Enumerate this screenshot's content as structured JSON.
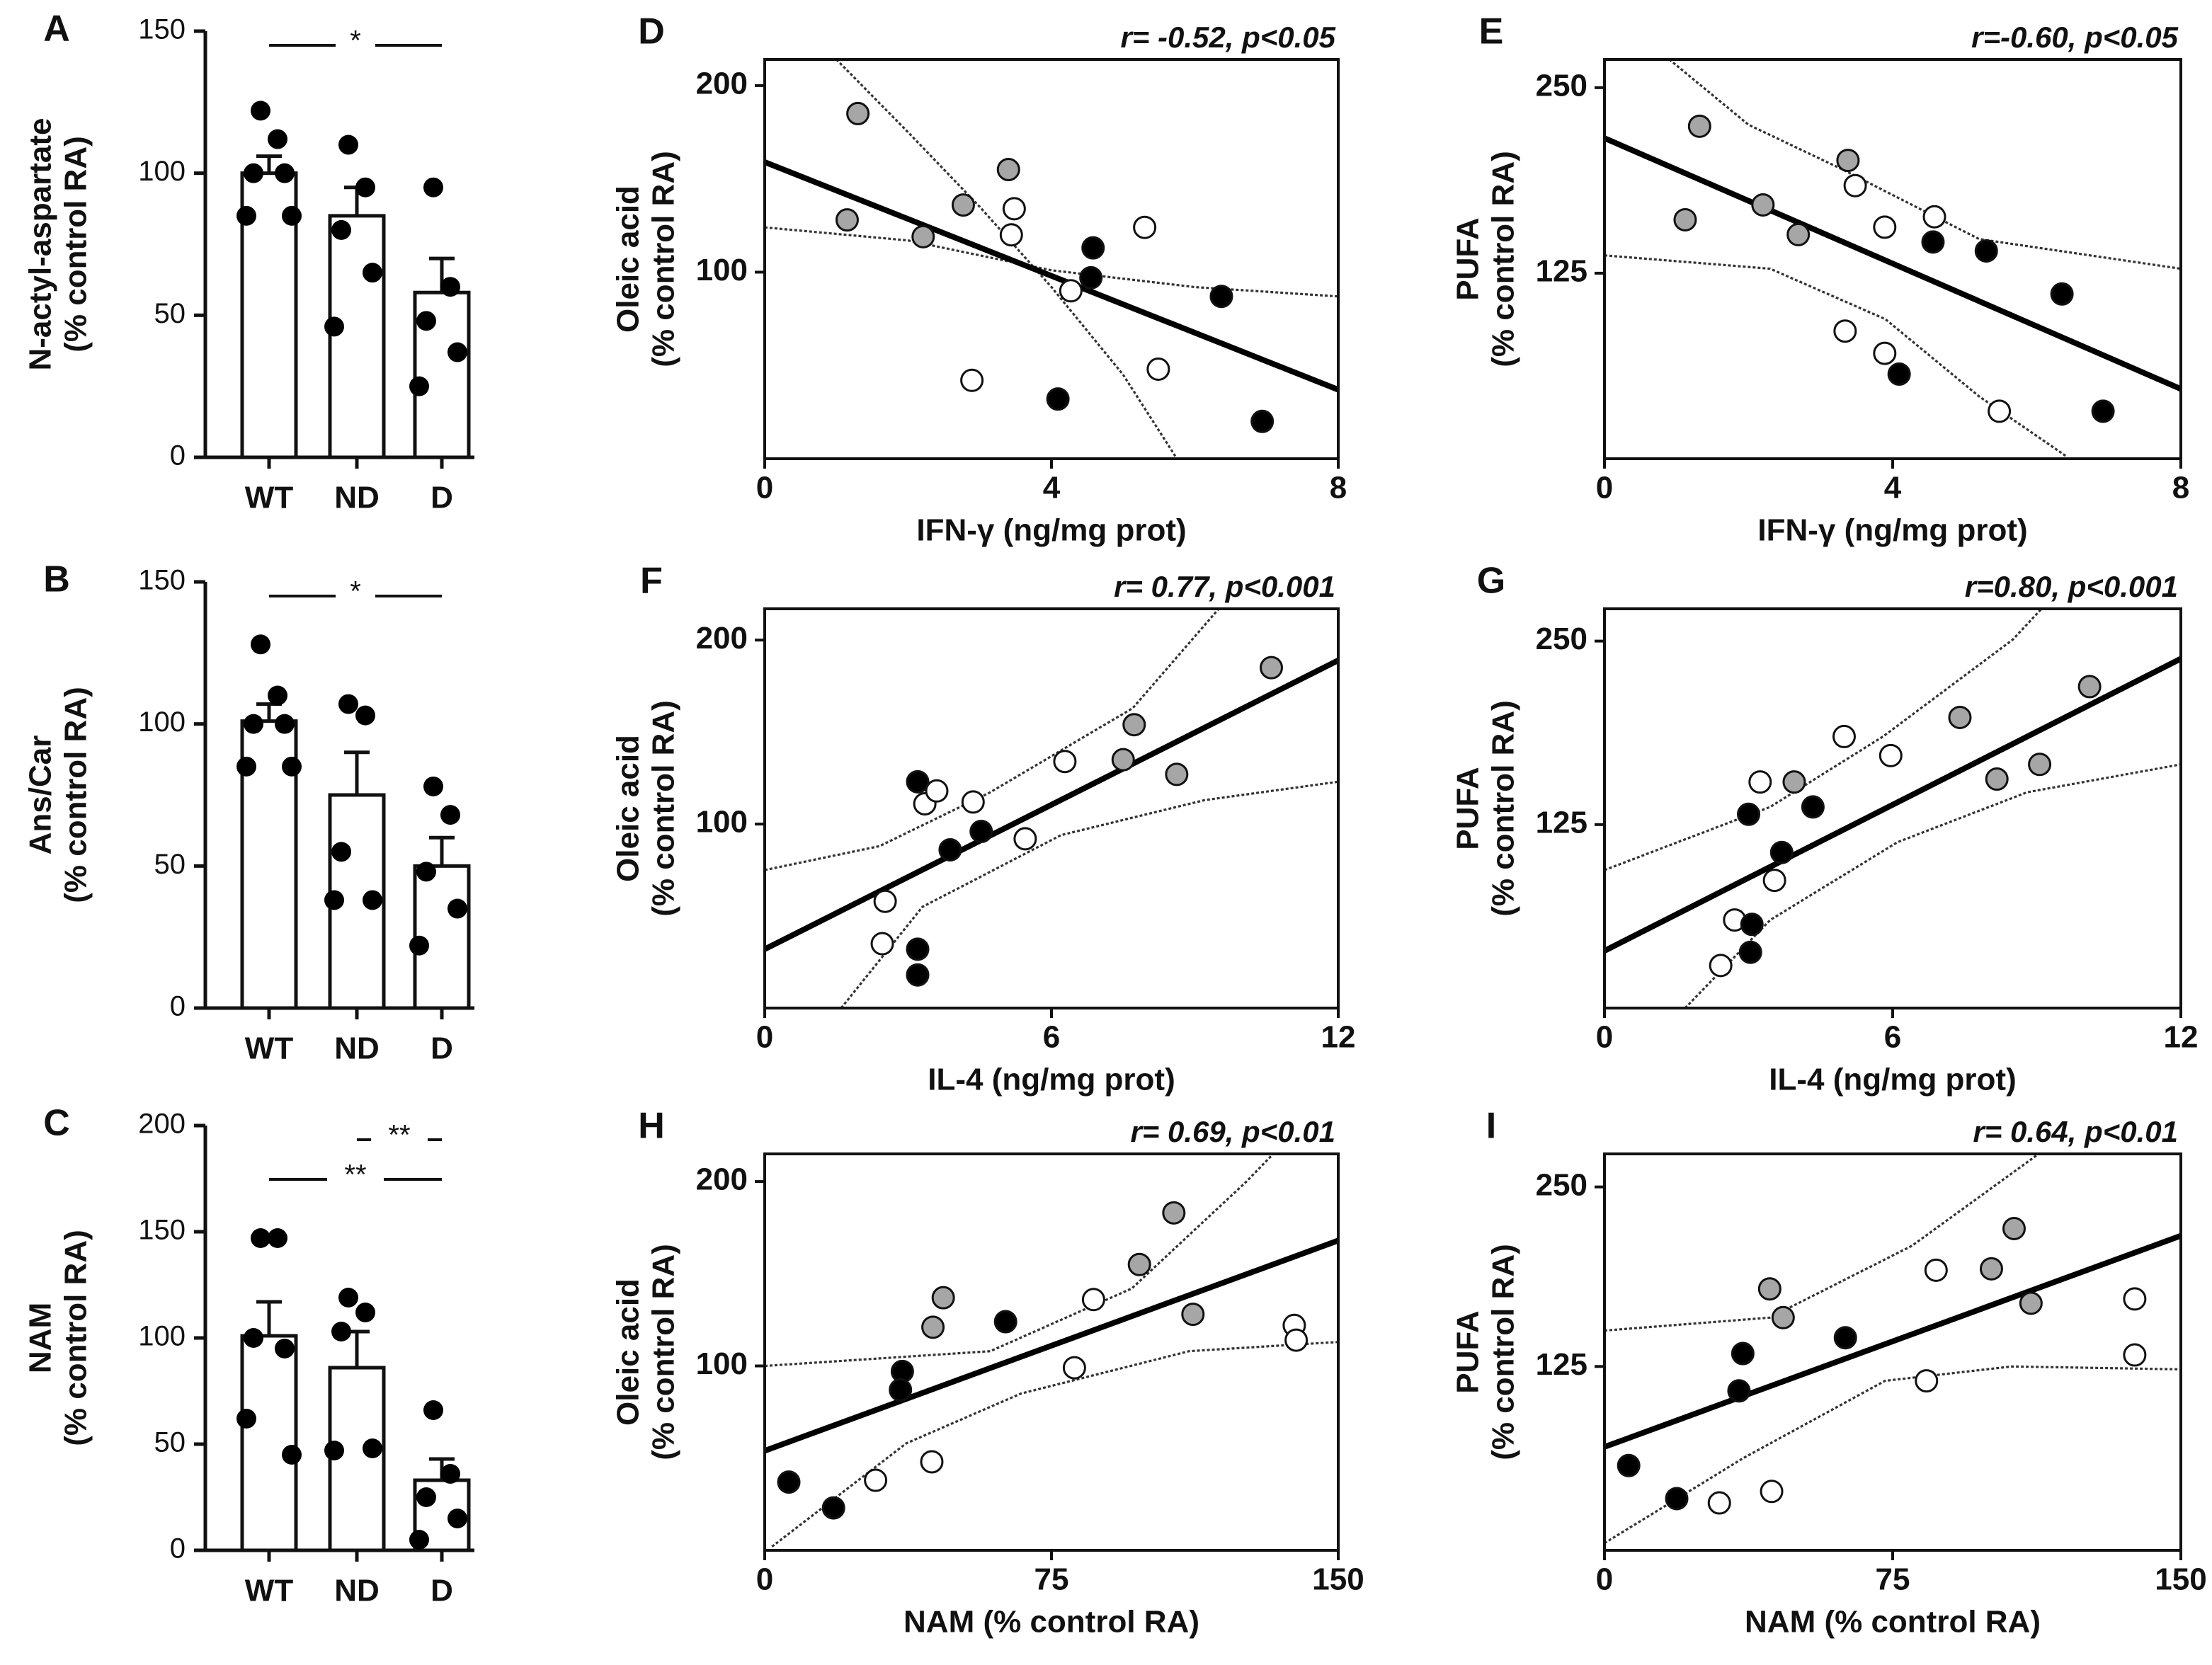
{
  "chart_data": [
    {
      "type": "bar",
      "panel": "A",
      "ylabel": [
        "N-actyl-aspartate",
        "(% control RA)"
      ],
      "categories": [
        "WT",
        "ND",
        "D"
      ],
      "values": [
        100,
        85,
        58
      ],
      "errors": [
        6,
        10,
        12
      ],
      "points": [
        [
          122,
          112,
          100,
          100,
          85,
          85
        ],
        [
          110,
          95,
          80,
          65,
          46
        ],
        [
          95,
          60,
          48,
          37,
          25
        ]
      ],
      "color": "#ffffff",
      "ylim": [
        0,
        150
      ],
      "yticks": [
        0,
        50,
        100,
        150
      ],
      "significance": [
        {
          "label": "*",
          "pair": [
            0,
            2
          ]
        }
      ]
    },
    {
      "type": "bar",
      "panel": "B",
      "ylabel": [
        "Ans/Car",
        "(% control RA)"
      ],
      "categories": [
        "WT",
        "ND",
        "D"
      ],
      "values": [
        101,
        75,
        50
      ],
      "errors": [
        6,
        15,
        10
      ],
      "points": [
        [
          128,
          110,
          100,
          100,
          85,
          85
        ],
        [
          107,
          103,
          55,
          38,
          38
        ],
        [
          78,
          68,
          48,
          35,
          22
        ]
      ],
      "color": "#ffffff",
      "ylim": [
        0,
        150
      ],
      "yticks": [
        0,
        50,
        100,
        150
      ],
      "significance": [
        {
          "label": "*",
          "pair": [
            0,
            2
          ]
        }
      ]
    },
    {
      "type": "bar",
      "panel": "C",
      "ylabel": [
        "NAM",
        "(% control RA)"
      ],
      "categories": [
        "WT",
        "ND",
        "D"
      ],
      "values": [
        101,
        86,
        33
      ],
      "errors": [
        16,
        17,
        10
      ],
      "points": [
        [
          147,
          147,
          100,
          95,
          62,
          45
        ],
        [
          119,
          112,
          103,
          48,
          47
        ],
        [
          66,
          36,
          25,
          15,
          5
        ]
      ],
      "color": "#ffffff",
      "ylim": [
        0,
        200
      ],
      "yticks": [
        0,
        50,
        100,
        150,
        200
      ],
      "significance": [
        {
          "label": "**",
          "pair": [
            1,
            2
          ]
        },
        {
          "label": "**",
          "pair": [
            0,
            2
          ]
        }
      ]
    },
    {
      "type": "scatter",
      "panel": "D",
      "annotation": "r= -0.52, p<0.05",
      "xlabel": "IFN-γ (ng/mg prot)",
      "ylabel": [
        "Oleic acid",
        "(% control RA)"
      ],
      "xlim": [
        0,
        8
      ],
      "ylim": [
        0,
        214
      ],
      "xticks": [
        0,
        4,
        8
      ],
      "yticks": [
        100,
        200
      ],
      "series": [
        {
          "color": "#a6a6a6",
          "x": [
            1.3,
            1.15,
            2.21,
            2.77,
            3.4
          ],
          "values": [
            185,
            128,
            119,
            136,
            155
          ]
        },
        {
          "color": "#ffffff",
          "x": [
            3.48,
            3.44,
            5.3,
            2.89,
            4.27,
            5.49
          ],
          "values": [
            134,
            120,
            124,
            42,
            90,
            48
          ]
        },
        {
          "color": "#000000",
          "x": [
            4.58,
            4.55,
            6.37,
            4.09,
            6.94
          ],
          "values": [
            113,
            97,
            87,
            32,
            20
          ]
        }
      ],
      "fit": {
        "x": [
          0,
          8
        ],
        "values": [
          159,
          37
        ]
      },
      "bands": [
        {
          "x": [
            0,
            2,
            4,
            6,
            8
          ],
          "values": [
            124,
            117,
            101,
            92,
            87
          ]
        },
        {
          "x": [
            1,
            2,
            3,
            4,
            5,
            5.75
          ],
          "values": [
            214,
            175,
            135,
            92,
            45,
            0
          ]
        }
      ]
    },
    {
      "type": "scatter",
      "panel": "E",
      "annotation": "r=-0.60, p<0.05",
      "xlabel": "IFN-γ (ng/mg prot)",
      "ylabel": [
        "PUFA",
        "(% control RA)"
      ],
      "xlim": [
        0,
        8
      ],
      "ylim": [
        0,
        269
      ],
      "xticks": [
        0,
        4,
        8
      ],
      "yticks": [
        125,
        250
      ],
      "series": [
        {
          "color": "#a6a6a6",
          "x": [
            1.32,
            1.12,
            2.2,
            2.69,
            3.38
          ],
          "values": [
            224,
            161,
            171,
            151,
            201
          ]
        },
        {
          "color": "#ffffff",
          "x": [
            3.48,
            3.89,
            4.58,
            3.34,
            3.89,
            5.48
          ],
          "values": [
            184,
            156,
            163,
            86,
            71,
            32
          ]
        },
        {
          "color": "#000000",
          "x": [
            4.56,
            5.3,
            6.35,
            4.09,
            6.92
          ],
          "values": [
            146,
            140,
            111,
            57,
            32
          ]
        }
      ],
      "fit": {
        "x": [
          0,
          8
        ],
        "values": [
          216,
          47
        ]
      },
      "bands": [
        {
          "x": [
            0.9,
            2,
            3.3,
            5.2,
            8
          ],
          "values": [
            269,
            225,
            195,
            148,
            128
          ]
        },
        {
          "x": [
            0,
            2.3,
            3.9,
            5.2,
            6.4
          ],
          "values": [
            137,
            128,
            94,
            42,
            2
          ]
        }
      ]
    },
    {
      "type": "scatter",
      "panel": "F",
      "annotation": "r= 0.77, p<0.001",
      "xlabel": "IL-4 (ng/mg prot)",
      "ylabel": [
        "Oleic acid",
        "(% control RA)"
      ],
      "xlim": [
        0,
        12
      ],
      "ylim": [
        0,
        217
      ],
      "xticks": [
        0,
        6,
        12
      ],
      "yticks": [
        100,
        200
      ],
      "series": [
        {
          "color": "#a6a6a6",
          "x": [
            10.6,
            7.73,
            7.5,
            8.62
          ],
          "values": [
            185,
            154,
            135,
            127
          ]
        },
        {
          "color": "#ffffff",
          "x": [
            3.35,
            3.6,
            4.36,
            6.28,
            5.45,
            2.52,
            2.46
          ],
          "values": [
            111,
            118,
            112,
            134,
            92,
            58,
            35
          ]
        },
        {
          "color": "#000000",
          "x": [
            3.2,
            3.88,
            4.53,
            3.2,
            3.2
          ],
          "values": [
            123,
            86,
            96,
            32,
            18
          ]
        }
      ],
      "fit": {
        "x": [
          0,
          12
        ],
        "values": [
          32,
          189
        ]
      },
      "bands": [
        {
          "x": [
            0,
            2.4,
            4.7,
            7.7,
            9.5
          ],
          "values": [
            75,
            88,
            117,
            163,
            217
          ]
        },
        {
          "x": [
            1.6,
            3.3,
            6.2,
            9.2,
            12
          ],
          "values": [
            0,
            55,
            94,
            113,
            123
          ]
        }
      ]
    },
    {
      "type": "scatter",
      "panel": "G",
      "annotation": "r=0.80, p<0.001",
      "xlabel": "IL-4 (ng/mg prot)",
      "ylabel": [
        "PUFA",
        "(% control RA)"
      ],
      "xlim": [
        0,
        12
      ],
      "ylim": [
        0,
        272
      ],
      "xticks": [
        0,
        6,
        12
      ],
      "yticks": [
        125,
        250
      ],
      "series": [
        {
          "color": "#a6a6a6",
          "x": [
            3.95,
            7.4,
            8.17,
            9.06,
            10.1
          ],
          "values": [
            154,
            198,
            156,
            166,
            219
          ]
        },
        {
          "color": "#ffffff",
          "x": [
            3.24,
            2.71,
            3.54,
            2.42,
            4.99,
            5.96
          ],
          "values": [
            154,
            60,
            87,
            29,
            185,
            172
          ]
        },
        {
          "color": "#000000",
          "x": [
            3.0,
            4.34,
            3.69,
            3.07,
            3.04
          ],
          "values": [
            132,
            137,
            106,
            57,
            38
          ]
        }
      ],
      "fit": {
        "x": [
          0,
          12
        ],
        "values": [
          39,
          238
        ]
      },
      "bands": [
        {
          "x": [
            0,
            3.45,
            5.8,
            8.5,
            9.1
          ],
          "values": [
            94,
            137,
            185,
            251,
            272
          ]
        },
        {
          "x": [
            1.68,
            3.45,
            6.1,
            8.8,
            12
          ],
          "values": [
            0,
            60,
            113,
            147,
            166
          ]
        }
      ]
    },
    {
      "type": "scatter",
      "panel": "H",
      "annotation": "r= 0.69, p<0.01",
      "xlabel": "NAM (% control RA)",
      "ylabel": [
        "Oleic acid",
        "(% control RA)"
      ],
      "xlim": [
        0,
        150
      ],
      "ylim": [
        0,
        215
      ],
      "xticks": [
        0,
        75,
        150
      ],
      "yticks": [
        100,
        200
      ],
      "series": [
        {
          "color": "#a6a6a6",
          "x": [
            44,
            46.7,
            98,
            107,
            112
          ],
          "values": [
            121,
            137,
            155,
            183,
            128
          ]
        },
        {
          "color": "#ffffff",
          "x": [
            29,
            43.7,
            81,
            86,
            138.5,
            139
          ],
          "values": [
            38,
            48,
            99,
            136,
            122,
            114
          ]
        },
        {
          "color": "#000000",
          "x": [
            6.3,
            18,
            36,
            35.5,
            63
          ],
          "values": [
            37,
            23,
            97,
            87,
            124
          ]
        }
      ],
      "fit": {
        "x": [
          0,
          150
        ],
        "values": [
          54,
          168
        ]
      },
      "bands": [
        {
          "x": [
            0,
            59,
            96,
            126,
            133
          ],
          "values": [
            100,
            108,
            142,
            200,
            215
          ]
        },
        {
          "x": [
            1.9,
            37,
            67,
            111,
            150
          ],
          "values": [
            2,
            58,
            85,
            108,
            113
          ]
        }
      ]
    },
    {
      "type": "scatter",
      "panel": "I",
      "annotation": "r= 0.64, p<0.01",
      "xlabel": "NAM (% control RA)",
      "ylabel": [
        "PUFA",
        "(% control RA)"
      ],
      "xlim": [
        0,
        150
      ],
      "ylim": [
        -3,
        273
      ],
      "xticks": [
        0,
        75,
        150
      ],
      "yticks": [
        125,
        250
      ],
      "series": [
        {
          "color": "#a6a6a6",
          "x": [
            43,
            46.5,
            100.7,
            106.6,
            111
          ],
          "values": [
            179,
            159,
            193,
            221,
            169
          ]
        },
        {
          "color": "#ffffff",
          "x": [
            29.9,
            43.5,
            83.8,
            86.3,
            138,
            138
          ],
          "values": [
            30,
            38,
            115,
            192,
            172,
            133
          ]
        },
        {
          "color": "#000000",
          "x": [
            6.3,
            18.8,
            36,
            35,
            62.7
          ],
          "values": [
            56,
            33,
            134,
            108,
            145
          ]
        }
      ],
      "fit": {
        "x": [
          0,
          150
        ],
        "values": [
          69,
          216
        ]
      },
      "bands": [
        {
          "x": [
            0,
            43,
            80,
            113
          ],
          "values": [
            150,
            159,
            209,
            273
          ]
        },
        {
          "x": [
            0,
            36,
            73,
            106,
            150
          ],
          "values": [
            2,
            61,
            115,
            125,
            123
          ]
        }
      ]
    }
  ]
}
